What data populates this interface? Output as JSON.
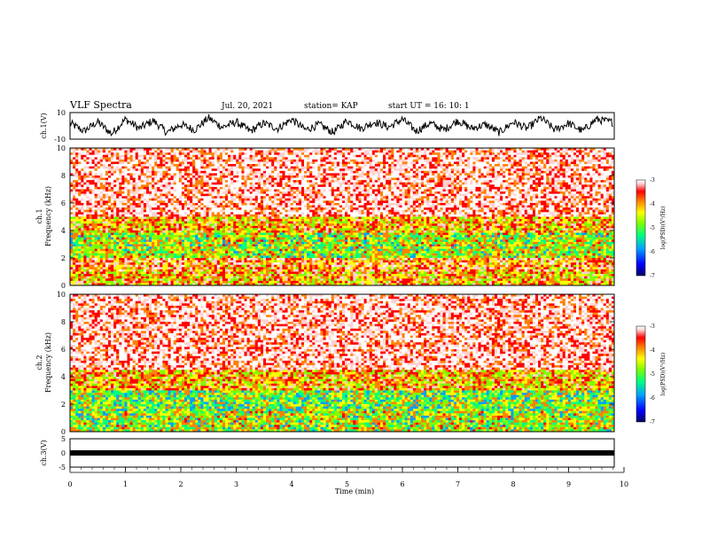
{
  "header": {
    "title": "VLF Spectra",
    "date": "Jul. 20, 2021",
    "station": "station= KAP",
    "start": "start  UT =   16: 10: 1"
  },
  "panels": {
    "ch1v_label": "ch.1(V)",
    "ch1_label": "ch.1",
    "ch2_label": "ch.2",
    "ch3v_label": "ch.3(V)",
    "freq_label": "Frequency (kHz)",
    "cb_label": "log(PSD)(V²/Hz)",
    "xlabel": "Time (min)"
  },
  "chart_data": [
    {
      "type": "line",
      "name": "ch.1(V)",
      "ylabel": "ch.1(V)",
      "ylim": [
        -10,
        10
      ],
      "yticks": [
        "10",
        "-10"
      ],
      "xlim": [
        0,
        9.8
      ],
      "note_values": "approximate waveform envelope",
      "x": [
        0,
        0.25,
        0.5,
        0.75,
        1,
        1.25,
        1.5,
        1.75,
        2,
        2.25,
        2.5,
        2.75,
        3,
        3.25,
        3.5,
        3.75,
        4,
        4.25,
        4.5,
        4.75,
        5,
        5.25,
        5.5,
        5.75,
        6,
        6.25,
        6.5,
        6.75,
        7,
        7.25,
        7.5,
        7.75,
        8,
        8.25,
        8.5,
        8.75,
        9,
        9.25,
        9.5,
        9.75
      ],
      "values": [
        2,
        -4,
        3,
        -6,
        5,
        -2,
        4,
        -5,
        1,
        -3,
        6,
        -1,
        3,
        -4,
        2,
        -2,
        5,
        -3,
        1,
        -5,
        4,
        -2,
        3,
        -1,
        5,
        -4,
        2,
        -3,
        4,
        -2,
        1,
        -5,
        3,
        -2,
        6,
        -3,
        2,
        -4,
        5,
        3
      ]
    },
    {
      "type": "heatmap",
      "name": "ch.1",
      "ylabel": "Frequency (kHz)",
      "xlim": [
        0,
        10
      ],
      "ylim": [
        0,
        10
      ],
      "yticks": [
        "0",
        "2",
        "4",
        "6",
        "8",
        "10"
      ],
      "colorbar": {
        "label": "log(PSD)(V²/Hz)",
        "range": [
          -7,
          -3
        ],
        "ticks": [
          "-3",
          "-4",
          "-5",
          "-6",
          "-7"
        ]
      },
      "bands_kHz": [
        {
          "range": [
            0,
            1
          ],
          "level": -4.5
        },
        {
          "range": [
            1,
            2
          ],
          "level": -4.2
        },
        {
          "range": [
            2,
            3.8
          ],
          "level": -5.0
        },
        {
          "range": [
            3.8,
            5
          ],
          "level": -4.5
        },
        {
          "range": [
            5,
            10
          ],
          "level": -3.6
        }
      ]
    },
    {
      "type": "heatmap",
      "name": "ch.2",
      "ylabel": "Frequency (kHz)",
      "xlim": [
        0,
        10
      ],
      "ylim": [
        0,
        10
      ],
      "yticks": [
        "0",
        "2",
        "4",
        "6",
        "8",
        "10"
      ],
      "colorbar": {
        "label": "log(PSD)(V²/Hz)",
        "range": [
          -7,
          -3
        ],
        "ticks": [
          "-3",
          "-4",
          "-5",
          "-6",
          "-7"
        ]
      },
      "bands_kHz": [
        {
          "range": [
            0,
            1.5
          ],
          "level": -5.0
        },
        {
          "range": [
            1.5,
            3
          ],
          "level": -5.2
        },
        {
          "range": [
            3,
            4.5
          ],
          "level": -4.5
        },
        {
          "range": [
            4.5,
            10
          ],
          "level": -3.6
        }
      ]
    },
    {
      "type": "line",
      "name": "ch.3(V)",
      "ylabel": "ch.3(V)",
      "ylim": [
        -5,
        5
      ],
      "yticks": [
        "5",
        "0",
        "-5"
      ],
      "x": [
        0,
        9.8
      ],
      "values": [
        0,
        0
      ]
    }
  ],
  "xaxis": {
    "label": "Time (min)",
    "ticks": [
      "0",
      "1",
      "2",
      "3",
      "4",
      "5",
      "6",
      "7",
      "8",
      "9",
      "10"
    ],
    "range": [
      0,
      10
    ]
  },
  "colors": {
    "scale": [
      "#000066",
      "#0000ff",
      "#00a0ff",
      "#00ff80",
      "#80ff00",
      "#ffff00",
      "#ff8000",
      "#ff0000",
      "#ffd0d0",
      "#ffffff"
    ]
  }
}
